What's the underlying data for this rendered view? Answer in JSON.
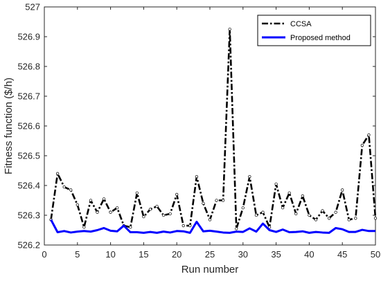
{
  "chart_data": {
    "type": "line",
    "xlabel": "Run number",
    "ylabel": "Fitness function ($/h)",
    "xlim": [
      0,
      50
    ],
    "ylim": [
      526.2,
      527
    ],
    "xticks": [
      0,
      5,
      10,
      15,
      20,
      25,
      30,
      35,
      40,
      45,
      50
    ],
    "yticks": [
      526.2,
      526.3,
      526.4,
      526.5,
      526.6,
      526.7,
      526.8,
      526.9,
      527
    ],
    "xtick_labels": [
      "0",
      "5",
      "10",
      "15",
      "20",
      "25",
      "30",
      "35",
      "40",
      "45",
      "50"
    ],
    "ytick_labels": [
      "526.2",
      "526.3",
      "526.4",
      "526.5",
      "526.6",
      "526.7",
      "526.8",
      "526.9",
      "527"
    ],
    "grid": false,
    "legend_position": "top-right",
    "x": [
      1,
      2,
      3,
      4,
      5,
      6,
      7,
      8,
      9,
      10,
      11,
      12,
      13,
      14,
      15,
      16,
      17,
      18,
      19,
      20,
      21,
      22,
      23,
      24,
      25,
      26,
      27,
      28,
      29,
      30,
      31,
      32,
      33,
      34,
      35,
      36,
      37,
      38,
      39,
      40,
      41,
      42,
      43,
      44,
      45,
      46,
      47,
      48,
      49,
      50
    ],
    "series": [
      {
        "name": "CCSA",
        "color": "#000000",
        "values": [
          526.285,
          526.44,
          526.395,
          526.385,
          526.335,
          526.26,
          526.35,
          526.31,
          526.355,
          526.31,
          526.325,
          526.265,
          526.26,
          526.375,
          526.295,
          526.32,
          526.33,
          526.3,
          526.305,
          526.37,
          526.265,
          526.265,
          526.43,
          526.34,
          526.285,
          526.35,
          526.35,
          526.925,
          526.255,
          526.325,
          526.43,
          526.3,
          526.31,
          526.26,
          526.405,
          526.325,
          526.375,
          526.305,
          526.365,
          526.3,
          526.285,
          526.315,
          526.29,
          526.31,
          526.385,
          526.285,
          526.29,
          526.535,
          526.57,
          526.29
        ]
      },
      {
        "name": "Proposed method",
        "color": "#0000ff",
        "values": [
          526.285,
          526.243,
          526.247,
          526.242,
          526.245,
          526.247,
          526.245,
          526.25,
          526.257,
          526.248,
          526.246,
          526.265,
          526.243,
          526.243,
          526.241,
          526.244,
          526.241,
          526.245,
          526.242,
          526.247,
          526.246,
          526.241,
          526.278,
          526.246,
          526.248,
          526.245,
          526.242,
          526.241,
          526.245,
          526.244,
          526.256,
          526.245,
          526.272,
          526.25,
          526.244,
          526.252,
          526.243,
          526.244,
          526.246,
          526.241,
          526.244,
          526.242,
          526.241,
          526.257,
          526.253,
          526.244,
          526.244,
          526.251,
          526.247,
          526.247
        ]
      }
    ]
  }
}
